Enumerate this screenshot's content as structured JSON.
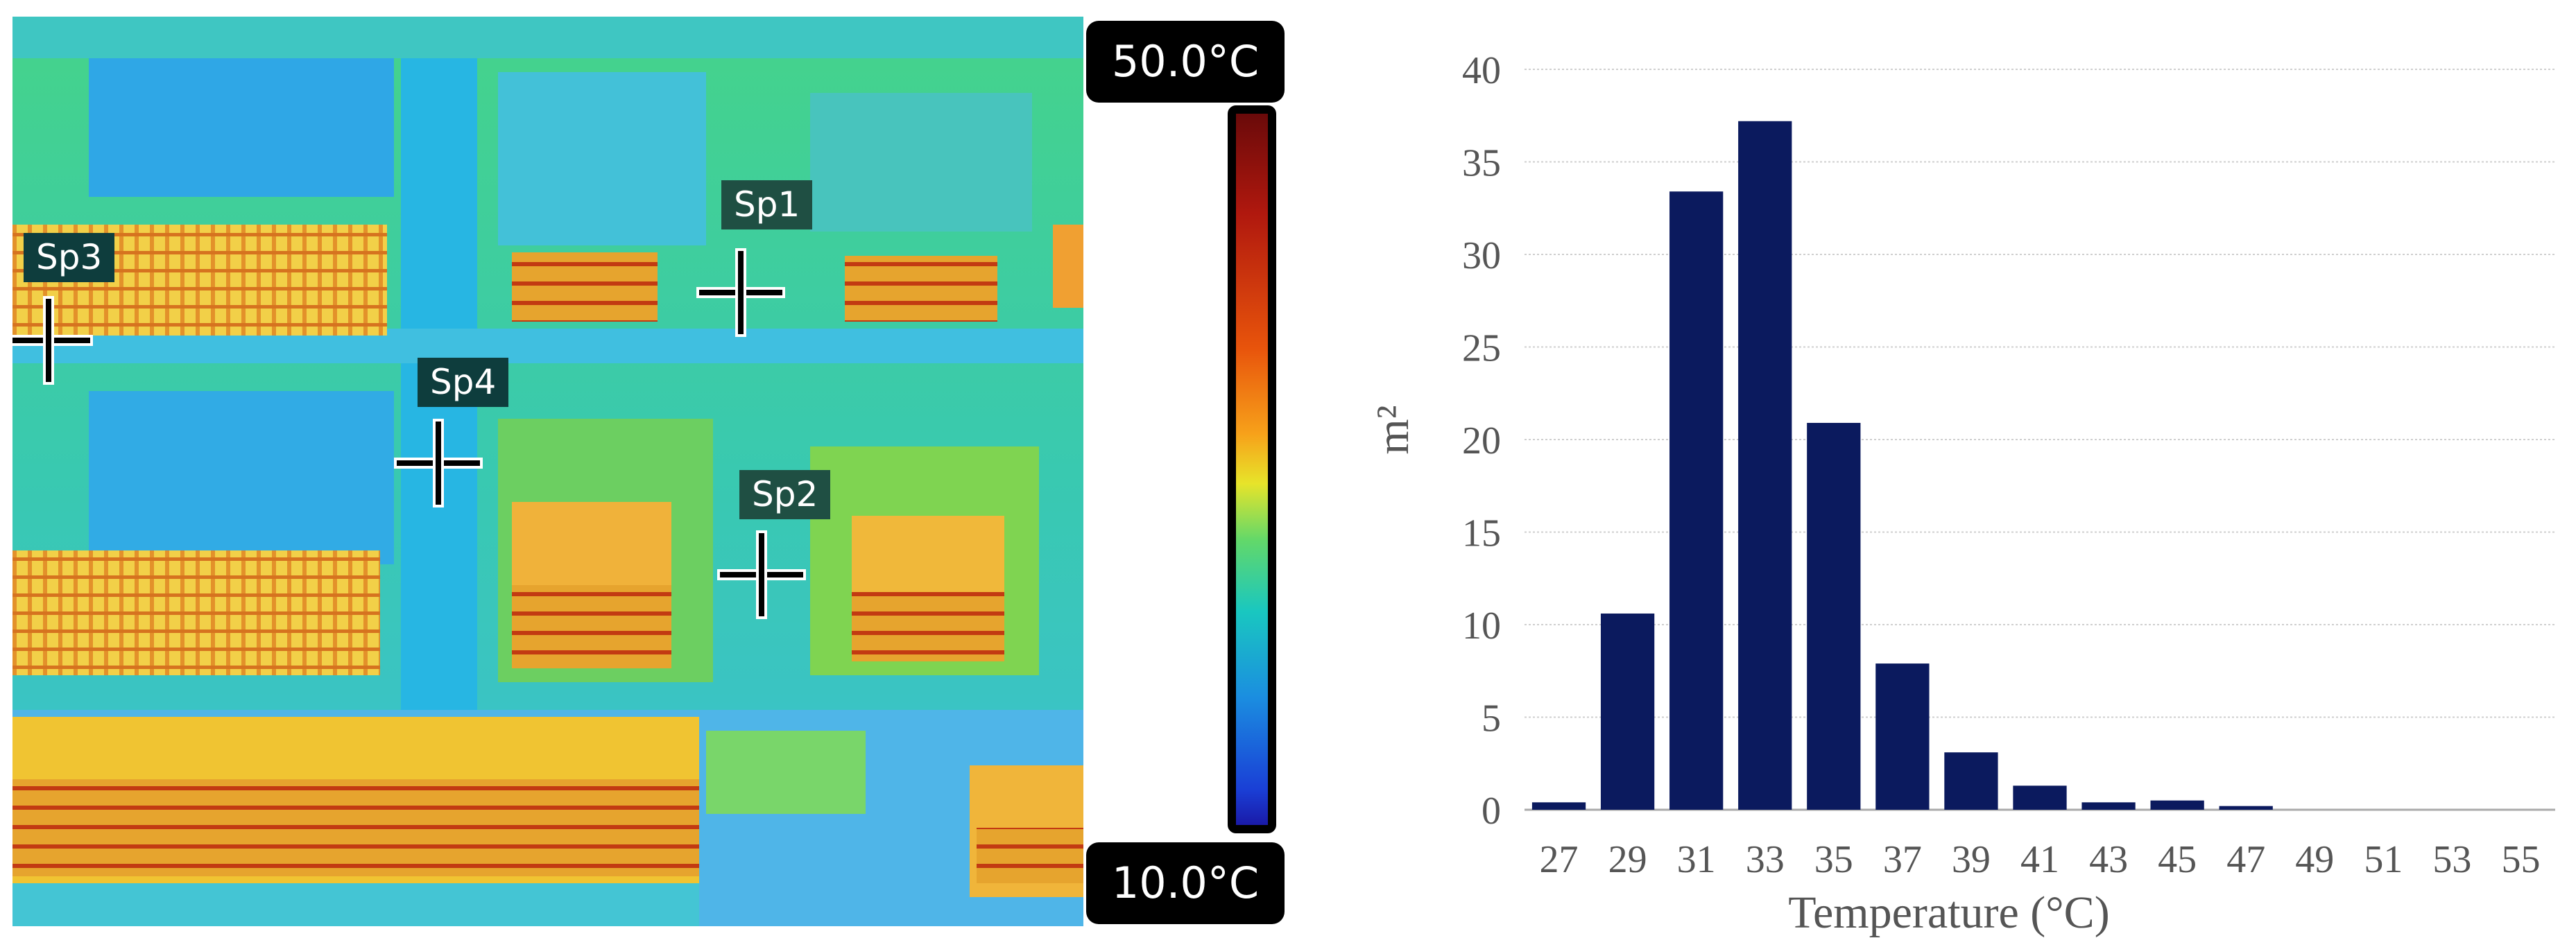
{
  "thermal": {
    "spots": [
      {
        "id": "sp1",
        "label": "Sp1"
      },
      {
        "id": "sp2",
        "label": "Sp2"
      },
      {
        "id": "sp3",
        "label": "Sp3"
      },
      {
        "id": "sp4",
        "label": "Sp4"
      }
    ],
    "scale": {
      "max": "50.0°C",
      "min": "10.0°C"
    }
  },
  "chart_data": {
    "type": "bar",
    "categories": [
      "27",
      "29",
      "31",
      "33",
      "35",
      "37",
      "39",
      "41",
      "43",
      "45",
      "47",
      "49",
      "51",
      "53",
      "55"
    ],
    "values": [
      0.4,
      10.6,
      33.4,
      37.2,
      20.9,
      7.9,
      3.1,
      1.3,
      0.4,
      0.5,
      0.2,
      0,
      0,
      0,
      0
    ],
    "xlabel": "Temperature (°C)",
    "ylabel": "m²",
    "ylim": [
      0,
      40
    ],
    "yticks": [
      0,
      5,
      10,
      15,
      20,
      25,
      30,
      35,
      40
    ],
    "grid": true,
    "bar_color": "#0b1a5e"
  }
}
